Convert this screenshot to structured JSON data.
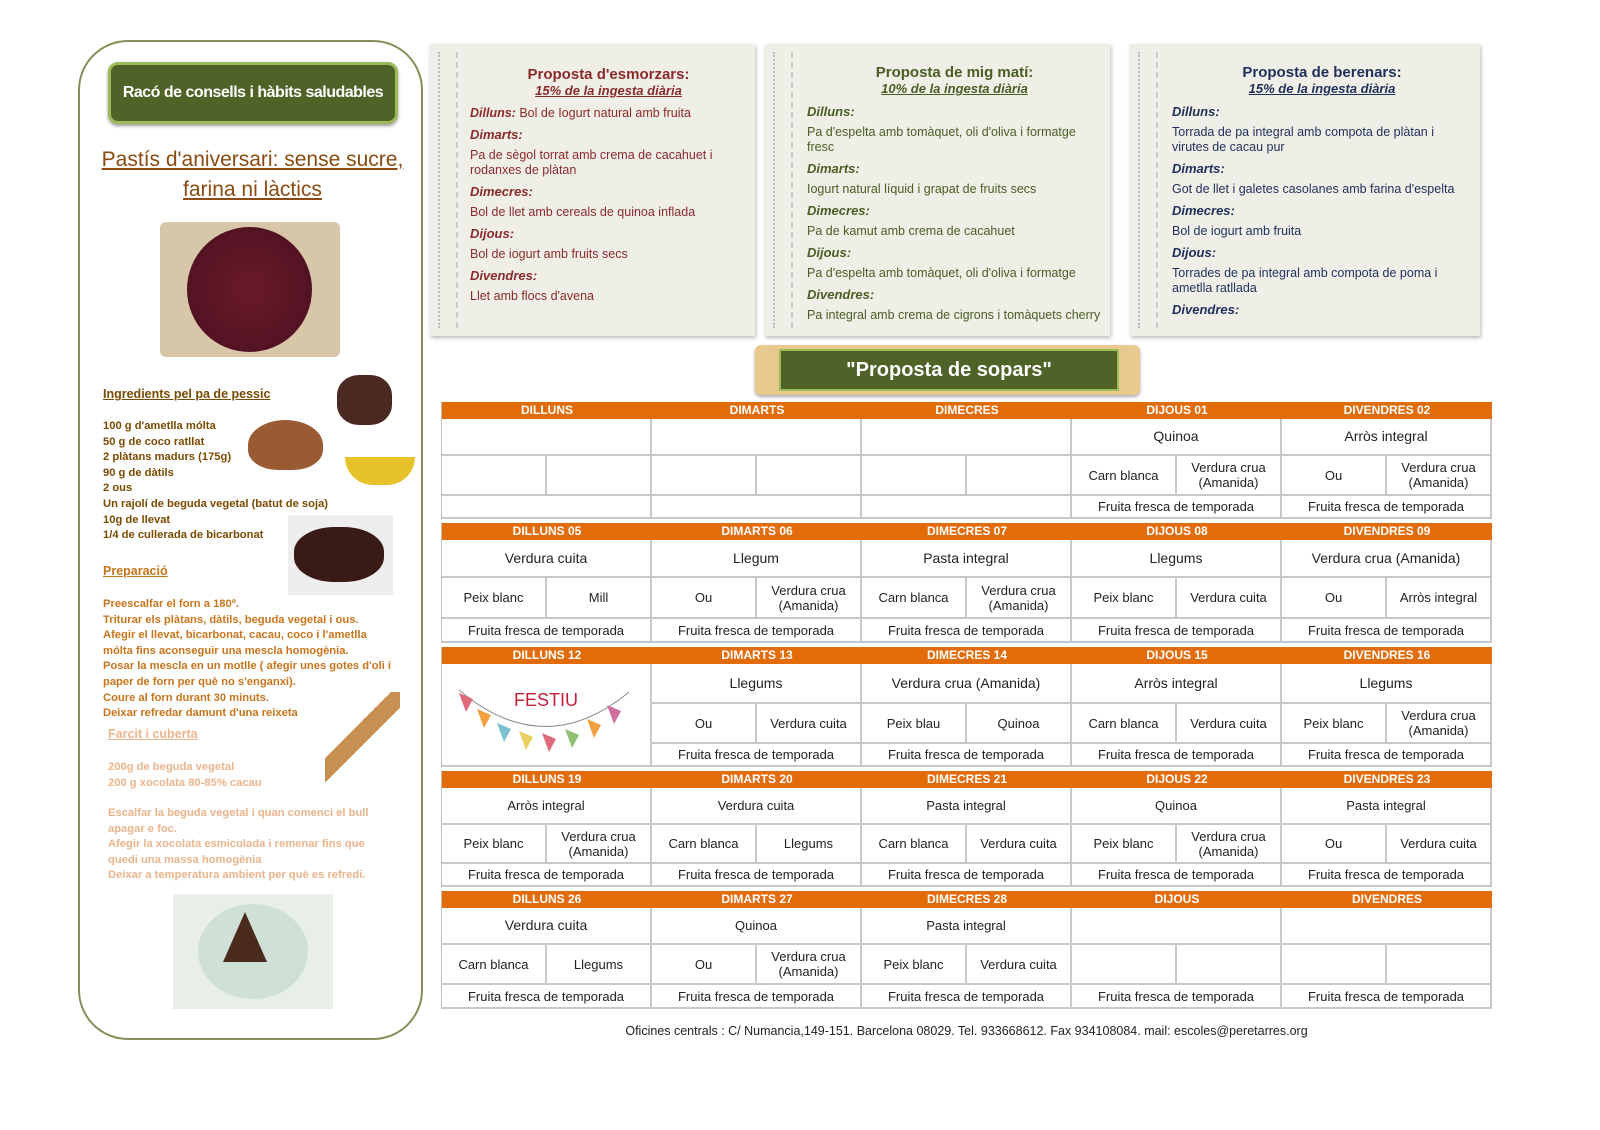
{
  "left": {
    "header": "Racó de consells i hàbits saludables",
    "title_line1": "Pastís d'aniversari: sense sucre,",
    "title_line2": "farina ni làctics",
    "ingredients_heading": "Ingredients pel pa de pessic",
    "ingredients": [
      "100 g d'ametlla mólta",
      "50 g de coco ratllat",
      "2 plàtans madurs (175g)",
      "90 g de dàtils",
      "2 ous",
      "Un rajolí de beguda vegetal (batut de soja)",
      "10g de llevat",
      "1/4 de cullerada de bicarbonat"
    ],
    "preparation_heading": "Preparació",
    "preparation": [
      "Preescalfar el forn a 180º.",
      "Triturar els plàtans, dàtils, beguda vegetal i ous.",
      "Afegir el llevat, bicarbonat, cacau, coco i l'ametlla",
      "mólta fins aconseguir una mescla homogènia.",
      "Posar la mescla en un motlle ( afegir unes gotes d'oli i",
      "paper de forn per què no s'enganxi).",
      "Coure al forn durant 30 minuts.",
      "Deixar refredar damunt d'una reixeta"
    ],
    "filling_heading": "Farcit i cuberta",
    "filling": [
      "200g de beguda vegetal",
      "200 g xocolata 80-85% cacau"
    ],
    "filling_steps": [
      "Escalfar la beguda vegetal i quan comenci el bull",
      "apagar e foc.",
      "Afegir la xocolata esmiculada i remenar fins que",
      "quedi una massa homogènia",
      "Deixar a temperatura ambient per què es refredi."
    ]
  },
  "notes": [
    {
      "title": "Proposta d'esmorzars:",
      "subtitle": "15% de la ingesta diària",
      "color": "#8b2a2a",
      "inline_first": true,
      "items": [
        {
          "day": "Dilluns:",
          "text": "Bol de Iogurt natural amb fruita"
        },
        {
          "day": "Dimarts:",
          "text": "Pa de sègol torrat amb crema de cacahuet i rodanxes de plàtan"
        },
        {
          "day": "Dimecres:",
          "text": "Bol de llet amb cereals de quinoa inflada"
        },
        {
          "day": "Dijous:",
          "text": "Bol de iogurt amb fruits secs"
        },
        {
          "day": "Divendres:",
          "text": "Llet amb flocs d'avena"
        }
      ]
    },
    {
      "title": "Proposta de mig matí:",
      "subtitle": "10% de la ingesta diària",
      "color": "#4a5e23",
      "items": [
        {
          "day": "Dilluns:",
          "text": "Pa d'espelta amb tomàquet, oli d'oliva i formatge fresc"
        },
        {
          "day": "Dimarts:",
          "text": "Iogurt natural líquid i grapat de fruits secs"
        },
        {
          "day": "Dimecres:",
          "text": "Pa de kamut amb crema de cacahuet"
        },
        {
          "day": "Dijous:",
          "text": "Pa d'espelta amb tomàquet, oli d'oliva i formatge"
        },
        {
          "day": "Divendres:",
          "text": "Pa integral amb crema de cigrons i tomàquets cherry"
        }
      ]
    },
    {
      "title": "Proposta de berenars:",
      "subtitle": "15% de la ingesta diària",
      "color": "#1f2f5a",
      "items": [
        {
          "day": "Dilluns:",
          "text": "Torrada de pa integral amb compota de plàtan i virutes de cacau pur"
        },
        {
          "day": "Dimarts:",
          "text": "Got de llet i galetes casolanes amb farina d'espelta"
        },
        {
          "day": "Dimecres:",
          "text": "Bol de iogurt amb fruita"
        },
        {
          "day": "Dijous:",
          "text": "Torrades de pa integral amb compota de poma i ametlla ratllada"
        },
        {
          "day": "Divendres:",
          "text": ""
        }
      ]
    }
  ],
  "banner": "\"Proposta de sopars\"",
  "colors": {
    "header_orange": "#e36c0a",
    "banner_green": "#4f6228"
  },
  "weeks": [
    [
      {
        "label": "DILLUNS",
        "main": "",
        "a": "",
        "b": "",
        "dessert": ""
      },
      {
        "label": "DIMARTS",
        "main": "",
        "a": "",
        "b": "",
        "dessert": ""
      },
      {
        "label": "DIMECRES",
        "main": "",
        "a": "",
        "b": "",
        "dessert": ""
      },
      {
        "label": "DIJOUS 01",
        "main": "Quinoa",
        "a": "Carn blanca",
        "b": "Verdura crua (Amanida)",
        "dessert": "Fruita fresca de temporada"
      },
      {
        "label": "DIVENDRES 02",
        "main": "Arròs integral",
        "a": "Ou",
        "b": "Verdura crua (Amanida)",
        "dessert": "Fruita fresca de temporada"
      }
    ],
    [
      {
        "label": "DILLUNS 05",
        "main": "Verdura cuita",
        "a": "Peix blanc",
        "b": "Mill",
        "dessert": "Fruita fresca de temporada"
      },
      {
        "label": "DIMARTS 06",
        "main": "Llegum",
        "a": "Ou",
        "b": "Verdura crua (Amanida)",
        "dessert": "Fruita fresca de temporada"
      },
      {
        "label": "DIMECRES 07",
        "main": "Pasta integral",
        "a": "Carn blanca",
        "b": "Verdura crua (Amanida)",
        "dessert": "Fruita fresca de temporada"
      },
      {
        "label": "DIJOUS 08",
        "main": "Llegums",
        "a": "Peix blanc",
        "b": "Verdura cuita",
        "dessert": "Fruita fresca de temporada"
      },
      {
        "label": "DIVENDRES 09",
        "main": "Verdura crua (Amanida)",
        "a": "Ou",
        "b": "Arròs integral",
        "dessert": "Fruita fresca de temporada"
      }
    ],
    [
      {
        "label": "DILLUNS 12",
        "festiu": "FESTIU"
      },
      {
        "label": "DIMARTS 13",
        "main": "Llegums",
        "a": "Ou",
        "b": "Verdura cuita",
        "dessert": "Fruita fresca de temporada"
      },
      {
        "label": "DIMECRES 14",
        "main": "Verdura crua (Amanida)",
        "a": "Peix blau",
        "b": "Quinoa",
        "dessert": "Fruita fresca de temporada"
      },
      {
        "label": "DIJOUS 15",
        "main": "Arròs integral",
        "a": "Carn blanca",
        "b": "Verdura cuita",
        "dessert": "Fruita fresca de temporada"
      },
      {
        "label": "DIVENDRES 16",
        "main": "Llegums",
        "a": "Peix blanc",
        "b": "Verdura crua (Amanida)",
        "dessert": "Fruita fresca de temporada"
      }
    ],
    [
      {
        "label": "DILLUNS 19",
        "main": "Arròs integral",
        "a": "Peix blanc",
        "b": "Verdura crua (Amanida)",
        "dessert": "Fruita fresca de temporada"
      },
      {
        "label": "DIMARTS 20",
        "main": "Verdura cuita",
        "a": "Carn blanca",
        "b": "Llegums",
        "dessert": "Fruita fresca de temporada"
      },
      {
        "label": "DIMECRES 21",
        "main": "Pasta integral",
        "a": "Carn blanca",
        "b": "Verdura cuita",
        "dessert": "Fruita fresca de temporada"
      },
      {
        "label": "DIJOUS 22",
        "main": "Quinoa",
        "a": "Peix blanc",
        "b": "Verdura crua (Amanida)",
        "dessert": "Fruita fresca de temporada"
      },
      {
        "label": "DIVENDRES 23",
        "main": "Pasta integral",
        "a": "Ou",
        "b": "Verdura cuita",
        "dessert": "Fruita fresca de temporada"
      }
    ],
    [
      {
        "label": "DILLUNS 26",
        "main": "Verdura cuita",
        "a": "Carn blanca",
        "b": "Llegums",
        "dessert": "Fruita fresca de temporada"
      },
      {
        "label": "DIMARTS 27",
        "main": "Quinoa",
        "a": "Ou",
        "b": "Verdura crua (Amanida)",
        "dessert": "Fruita fresca de temporada"
      },
      {
        "label": "DIMECRES 28",
        "main": "Pasta integral",
        "a": "Peix blanc",
        "b": "Verdura cuita",
        "dessert": "Fruita fresca de temporada"
      },
      {
        "label": "DIJOUS",
        "main": "",
        "a": "",
        "b": "",
        "dessert": "Fruita fresca de temporada"
      },
      {
        "label": "DIVENDRES",
        "main": "",
        "a": "",
        "b": "",
        "dessert": "Fruita fresca de temporada"
      }
    ]
  ],
  "footer": "Oficines centrals : C/ Numancia,149-151. Barcelona 08029. Tel. 933668612. Fax 934108084. mail: escoles@peretarres.org"
}
